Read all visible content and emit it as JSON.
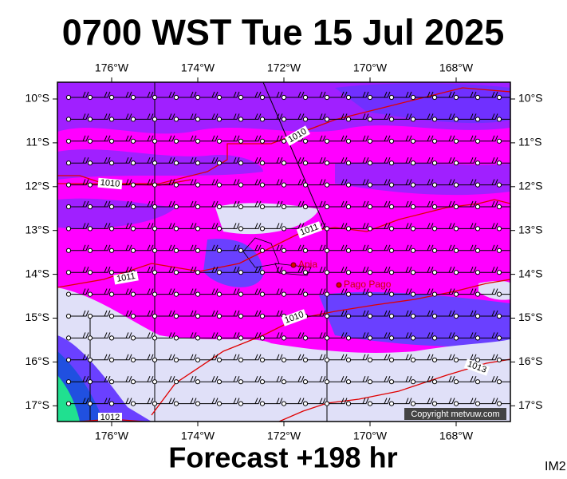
{
  "title": "0700 WST Tue 15 Jul 2025",
  "map": {
    "lon_labels": [
      "176°W",
      "174°W",
      "172°W",
      "170°W",
      "168°W"
    ],
    "lat_labels": [
      "10°S",
      "11°S",
      "12°S",
      "13°S",
      "14°S",
      "15°S",
      "16°S",
      "17°S"
    ],
    "isobar_labels": [
      "1010",
      "1010",
      "1011",
      "1011",
      "1010",
      "1013",
      "1012"
    ],
    "places": [
      "Apia",
      "Pago Pago"
    ],
    "copyright": "Copyright metvuw.com"
  },
  "footer": {
    "forecast": "Forecast +198 hr",
    "image_id": "IM2"
  }
}
